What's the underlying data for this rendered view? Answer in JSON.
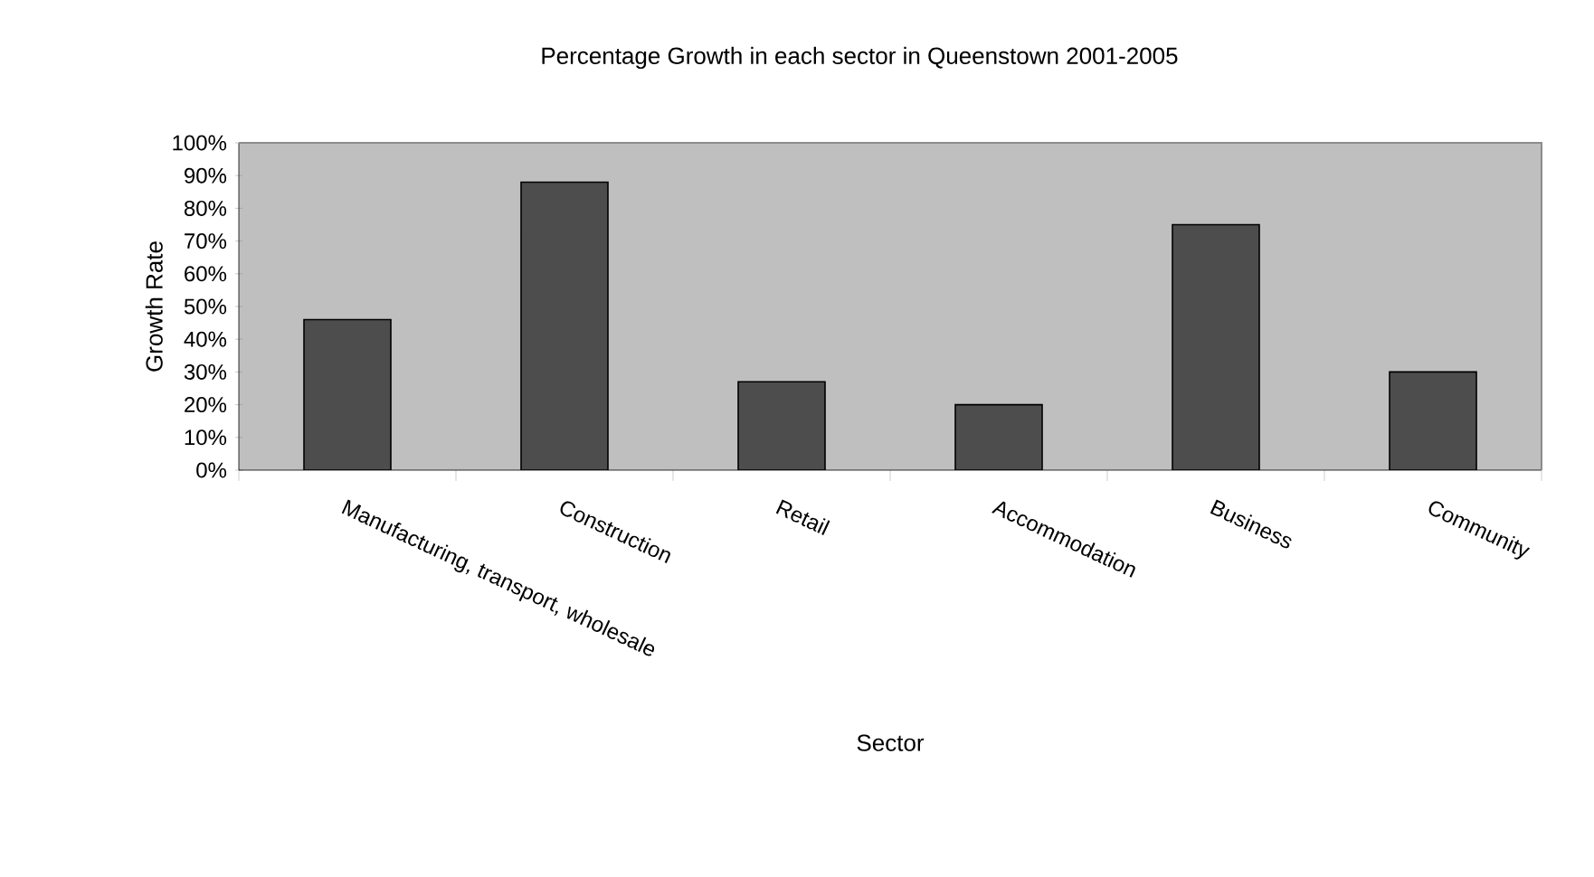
{
  "chart_data": {
    "type": "bar",
    "title": "Percentage Growth in each sector in Queenstown 2001-2005",
    "xlabel": "Sector",
    "ylabel": "Growth Rate",
    "categories": [
      "Manufacturing, transport, wholesale",
      "Construction",
      "Retail",
      "Accommodation",
      "Business",
      "Community"
    ],
    "values": [
      46,
      88,
      27,
      20,
      75,
      30
    ],
    "color": "#4d4d4d",
    "ylim": [
      0,
      100
    ],
    "yticks": [
      {
        "value": 0,
        "label": "0%"
      },
      {
        "value": 10,
        "label": "10%"
      },
      {
        "value": 20,
        "label": "20%"
      },
      {
        "value": 30,
        "label": "30%"
      },
      {
        "value": 40,
        "label": "40%"
      },
      {
        "value": 50,
        "label": "50%"
      },
      {
        "value": 60,
        "label": "60%"
      },
      {
        "value": 70,
        "label": "70%"
      },
      {
        "value": 80,
        "label": "80%"
      },
      {
        "value": 90,
        "label": "90%"
      },
      {
        "value": 100,
        "label": "100%"
      }
    ],
    "grid": false
  }
}
